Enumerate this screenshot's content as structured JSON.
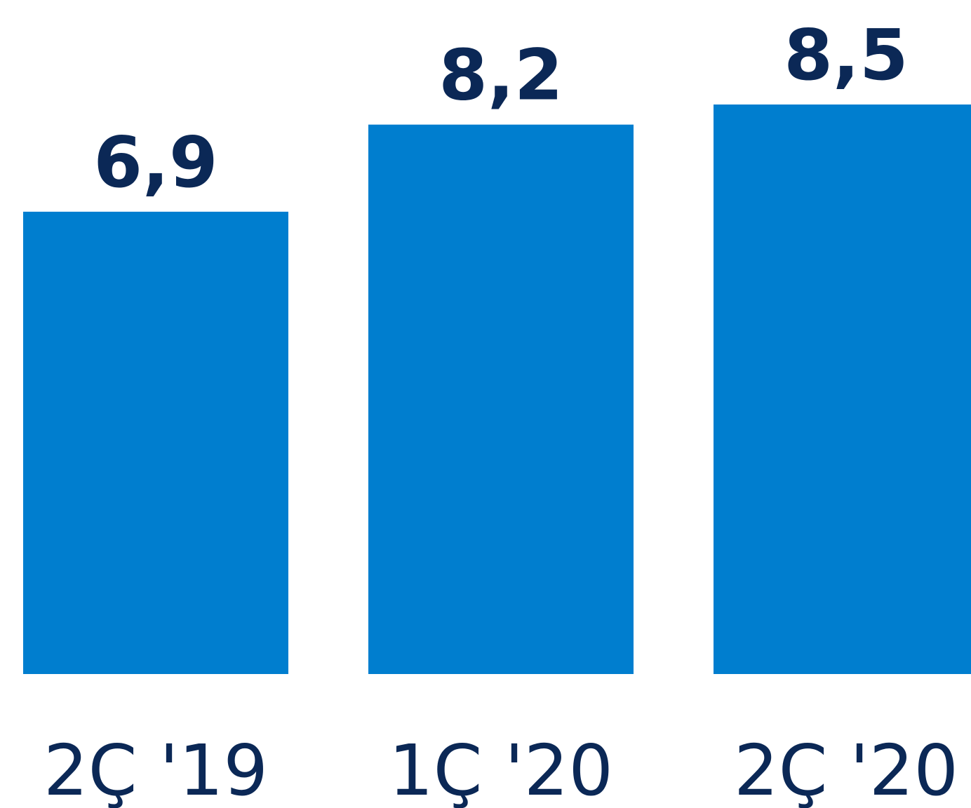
{
  "chart_data": {
    "type": "bar",
    "categories": [
      "2Ç '19",
      "1Ç '20",
      "2Ç '20"
    ],
    "values": [
      6.9,
      8.2,
      8.5
    ],
    "value_labels": [
      "6,9",
      "8,2",
      "8,5"
    ],
    "title": "",
    "xlabel": "",
    "ylabel": "",
    "ylim": [
      0,
      8.5
    ],
    "grid": false,
    "legend": "none"
  },
  "colors": {
    "bar": "#007ECF",
    "text": "#0B2856"
  }
}
